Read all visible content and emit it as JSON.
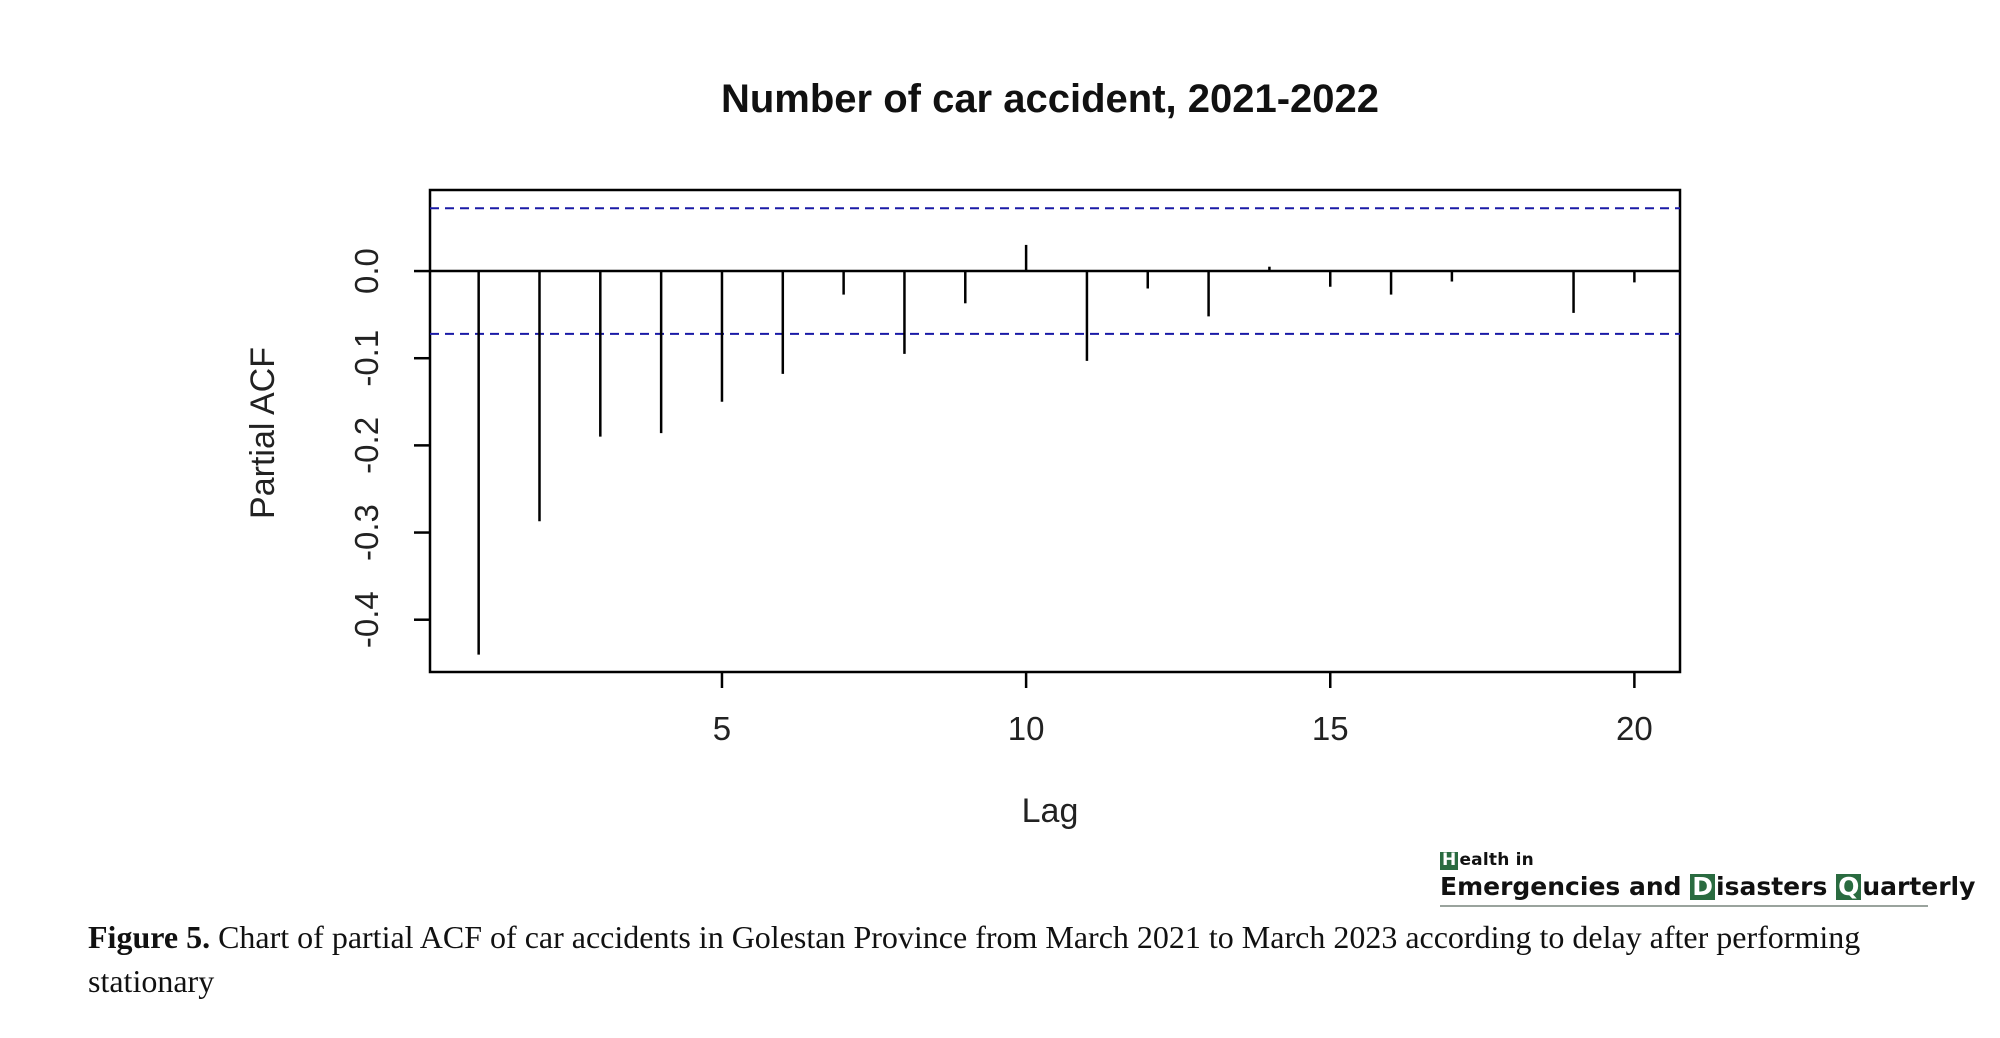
{
  "chart_data": {
    "type": "bar",
    "title": "Number of car accident, 2021-2022",
    "xlabel": "Lag",
    "ylabel": "Partial ACF",
    "x": [
      1,
      2,
      3,
      4,
      5,
      6,
      7,
      8,
      9,
      10,
      11,
      12,
      13,
      14,
      15,
      16,
      17,
      18,
      19,
      20
    ],
    "values": [
      -0.44,
      -0.287,
      -0.19,
      -0.186,
      -0.15,
      -0.118,
      -0.027,
      -0.095,
      -0.037,
      0.03,
      -0.103,
      -0.02,
      -0.052,
      0.005,
      -0.018,
      -0.027,
      -0.012,
      0.0,
      -0.048,
      -0.013
    ],
    "confidence_limit": 0.072,
    "xlim": [
      0.2,
      20.75
    ],
    "ylim": [
      -0.46,
      0.093
    ],
    "xticks": [
      5,
      10,
      15,
      20
    ],
    "xtick_labels": [
      "5",
      "10",
      "15",
      "20"
    ],
    "yticks": [
      0.0,
      -0.1,
      -0.2,
      -0.3,
      -0.4
    ],
    "ytick_labels": [
      "0.0",
      "-0.1",
      "-0.2",
      "-0.3",
      "-0.4"
    ],
    "grid": false,
    "colors": {
      "bars": "#000000",
      "confidence": "#1a1aa6"
    }
  },
  "logo": {
    "line1_box": "H",
    "line1_rest": "ealth in",
    "line2_part1": "Emergencies and ",
    "line2_box1": "D",
    "line2_part2": "isasters ",
    "line2_box2": "Q",
    "line2_part3": "uarterly",
    "accent": "#2a6b40"
  },
  "caption": {
    "label": "Figure 5.",
    "text": " Chart of partial ACF of car accidents in Golestan Province from March 2021 to March 2023 according to delay after performing stationary"
  }
}
